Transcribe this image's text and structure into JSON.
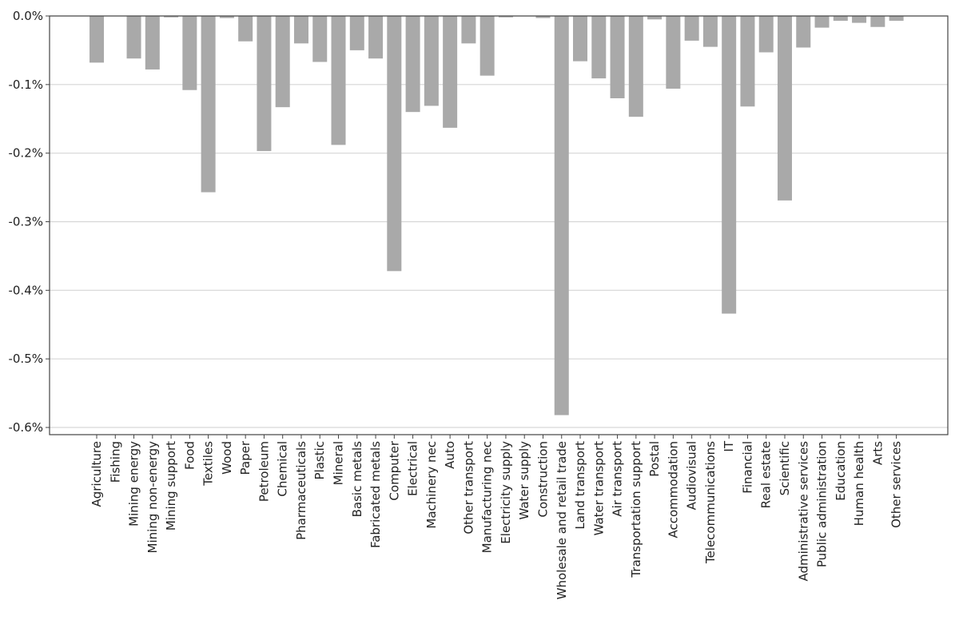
{
  "chart_data": {
    "type": "bar",
    "title": "",
    "xlabel": "",
    "ylabel": "",
    "ylim": [
      -0.6,
      0.0
    ],
    "y_ticks": [
      0.0,
      -0.1,
      -0.2,
      -0.3,
      -0.4,
      -0.5,
      -0.6
    ],
    "y_tick_labels": [
      "0.0%",
      "-0.1%",
      "-0.2%",
      "-0.3%",
      "-0.4%",
      "-0.5%",
      "-0.6%"
    ],
    "y_unit": "%",
    "grid": "horizontal",
    "bar_color": "#a9a9a9",
    "categories": [
      "Agriculture",
      "Fishing",
      "Mining energy",
      "Mining non-energy",
      "Mining support",
      "Food",
      "Textiles",
      "Wood",
      "Paper",
      "Petroleum",
      "Chemical",
      "Pharmaceuticals",
      "Plastic",
      "Mineral",
      "Basic metals",
      "Fabricated metals",
      "Computer",
      "Electrical",
      "Machinery nec",
      "Auto",
      "Other transport",
      "Manufacturing nec",
      "Electricity supply",
      "Water supply",
      "Construction",
      "Wholesale and retail trade",
      "Land transport",
      "Water transport",
      "Air transport",
      "Transportation support",
      "Postal",
      "Accommodation",
      "Audiovisual",
      "Telecommunications",
      "IT",
      "Financial",
      "Real estate",
      "Scientific",
      "Administrative services",
      "Public administration",
      "Education",
      "Human health",
      "Arts",
      "Other services"
    ],
    "values": [
      -0.068,
      0.0,
      -0.062,
      -0.078,
      -0.002,
      -0.108,
      -0.257,
      -0.003,
      -0.037,
      -0.197,
      -0.133,
      -0.04,
      -0.067,
      -0.188,
      -0.05,
      -0.062,
      -0.372,
      -0.14,
      -0.131,
      -0.163,
      -0.04,
      -0.087,
      -0.002,
      0.0,
      -0.003,
      -0.582,
      -0.066,
      -0.091,
      -0.12,
      -0.147,
      -0.005,
      -0.106,
      -0.036,
      -0.045,
      -0.434,
      -0.132,
      -0.053,
      -0.269,
      -0.046,
      -0.017,
      -0.007,
      -0.01,
      -0.016,
      -0.007
    ]
  }
}
